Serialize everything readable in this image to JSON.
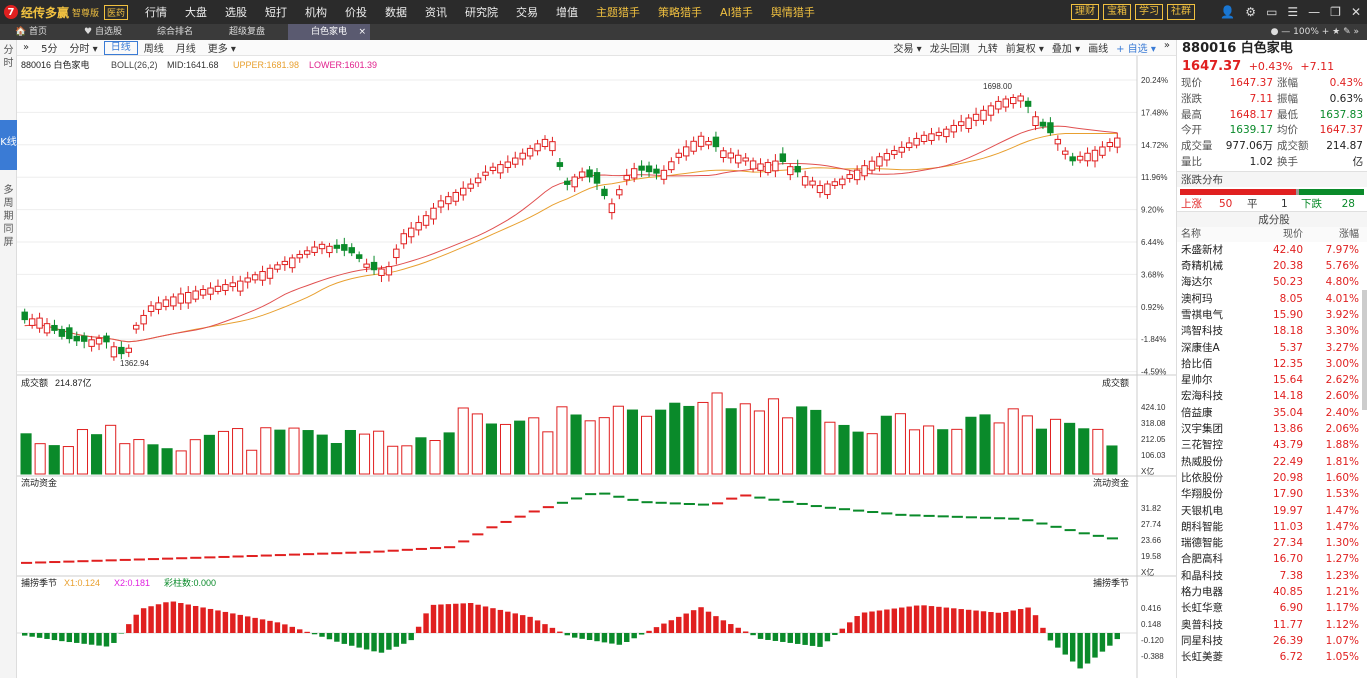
{
  "app": {
    "logo_mark": "7",
    "name": "经传多赢",
    "edition": "智尊版",
    "version": "医药"
  },
  "menu": [
    "行情",
    "大盘",
    "选股",
    "短打",
    "机构",
    "价投",
    "数据",
    "资讯",
    "研究院",
    "交易",
    "增值",
    "主题猎手",
    "策略猎手",
    "AI猎手",
    "舆情猎手"
  ],
  "right_buttons": [
    "理财",
    "宝箱",
    "学习",
    "社群"
  ],
  "window_icons": [
    "person-icon",
    "gear-icon",
    "window-icon",
    "menu-icon",
    "minimize-icon",
    "restore-icon",
    "close-icon"
  ],
  "tabs": [
    "首页",
    "自选股",
    "综合排名",
    "超级复盘",
    "白色家电"
  ],
  "tab_close": "×",
  "zoom": "100%",
  "left_tabs": [
    "分时",
    "K线",
    "多周期同屏"
  ],
  "periods": [
    "5分",
    "分时",
    "日线",
    "周线",
    "月线",
    "更多"
  ],
  "period_active": "日线",
  "toolbar_right": [
    "交易",
    "龙头回测",
    "九转",
    "前复权",
    "叠加",
    "画线",
    "自选"
  ],
  "main": {
    "code_name": "880016 白色家电",
    "indicator": "BOLL(26,2)",
    "mid": "MID:1641.68",
    "upper": "UPPER:1681.98",
    "lower": "LOWER:1601.39",
    "high_label": "1698.00",
    "low_label": "1362.94",
    "pct_labels": [
      "20.24%",
      "17.48%",
      "14.72%",
      "11.96%",
      "9.20%",
      "6.44%",
      "3.68%",
      "0.92%",
      "-1.84%",
      "-4.59%"
    ]
  },
  "volume": {
    "label": "成交额",
    "value": "214.87亿",
    "right_label": "成交额",
    "ticks": [
      "424.10",
      "318.08",
      "212.05",
      "106.03",
      "X亿"
    ]
  },
  "flow": {
    "label": "流动资金",
    "right_label": "流动资金",
    "ticks": [
      "31.82",
      "27.74",
      "23.66",
      "19.58",
      "X亿"
    ]
  },
  "osc": {
    "label": "捕捞季节",
    "x1": "X1:0.124",
    "x2": "X2:0.181",
    "col": "彩柱数:0.000",
    "right_label": "捕捞季节",
    "ticks": [
      "0.416",
      "0.148",
      "-0.120",
      "-0.388"
    ]
  },
  "quote": {
    "title": "880016 白色家电",
    "price": "1647.37",
    "chg_pct": "+0.43%",
    "chg": "+7.11",
    "rows": [
      [
        "现价",
        "1647.37",
        "涨幅",
        "0.43%",
        "red",
        "red"
      ],
      [
        "涨跌",
        "7.11",
        "振幅",
        "0.63%",
        "red",
        "dark"
      ],
      [
        "最高",
        "1648.17",
        "最低",
        "1637.83",
        "red",
        "green"
      ],
      [
        "今开",
        "1639.17",
        "均价",
        "1647.37",
        "green",
        "red"
      ],
      [
        "成交量",
        "977.06万",
        "成交额",
        "214.87亿",
        "dark",
        "dark"
      ],
      [
        "量比",
        "1.02",
        "换手",
        "-",
        "dark",
        "dark"
      ]
    ]
  },
  "dist": {
    "title": "涨跌分布",
    "up_label": "上涨",
    "up": "50",
    "flat_label": "平",
    "flat": "1",
    "down_label": "下跌",
    "down": "28"
  },
  "constituents": {
    "title": "成分股",
    "headers": [
      "名称",
      "现价",
      "涨幅"
    ],
    "rows": [
      [
        "禾盛新材",
        "42.40",
        "7.97%"
      ],
      [
        "奇精机械",
        "20.38",
        "5.76%"
      ],
      [
        "海达尔",
        "50.23",
        "4.80%"
      ],
      [
        "澳柯玛",
        "8.05",
        "4.01%"
      ],
      [
        "雪祺电气",
        "15.90",
        "3.92%"
      ],
      [
        "鸿智科技",
        "18.18",
        "3.30%"
      ],
      [
        "深康佳A",
        "5.37",
        "3.27%"
      ],
      [
        "拾比佰",
        "12.35",
        "3.00%"
      ],
      [
        "星帅尔",
        "15.64",
        "2.62%"
      ],
      [
        "宏海科技",
        "14.18",
        "2.60%"
      ],
      [
        "倍益康",
        "35.04",
        "2.40%"
      ],
      [
        "汉宇集团",
        "13.86",
        "2.06%"
      ],
      [
        "三花智控",
        "43.79",
        "1.88%"
      ],
      [
        "热威股份",
        "22.49",
        "1.81%"
      ],
      [
        "比依股份",
        "20.98",
        "1.60%"
      ],
      [
        "华翔股份",
        "17.90",
        "1.53%"
      ],
      [
        "天银机电",
        "19.97",
        "1.47%"
      ],
      [
        "朗科智能",
        "11.03",
        "1.47%"
      ],
      [
        "瑞德智能",
        "27.34",
        "1.30%"
      ],
      [
        "合肥高科",
        "16.70",
        "1.27%"
      ],
      [
        "和晶科技",
        "7.38",
        "1.23%"
      ],
      [
        "格力电器",
        "40.85",
        "1.21%"
      ],
      [
        "长虹华意",
        "6.90",
        "1.17%"
      ],
      [
        "奥普科技",
        "11.77",
        "1.12%"
      ],
      [
        "同星科技",
        "26.39",
        "1.07%"
      ],
      [
        "长虹美菱",
        "6.72",
        "1.05%"
      ]
    ]
  },
  "colors": {
    "up": "#e02020",
    "down": "#0a8a2a",
    "mid": "#e8a030",
    "upper": "#f0c040",
    "lower": "#e05050"
  }
}
